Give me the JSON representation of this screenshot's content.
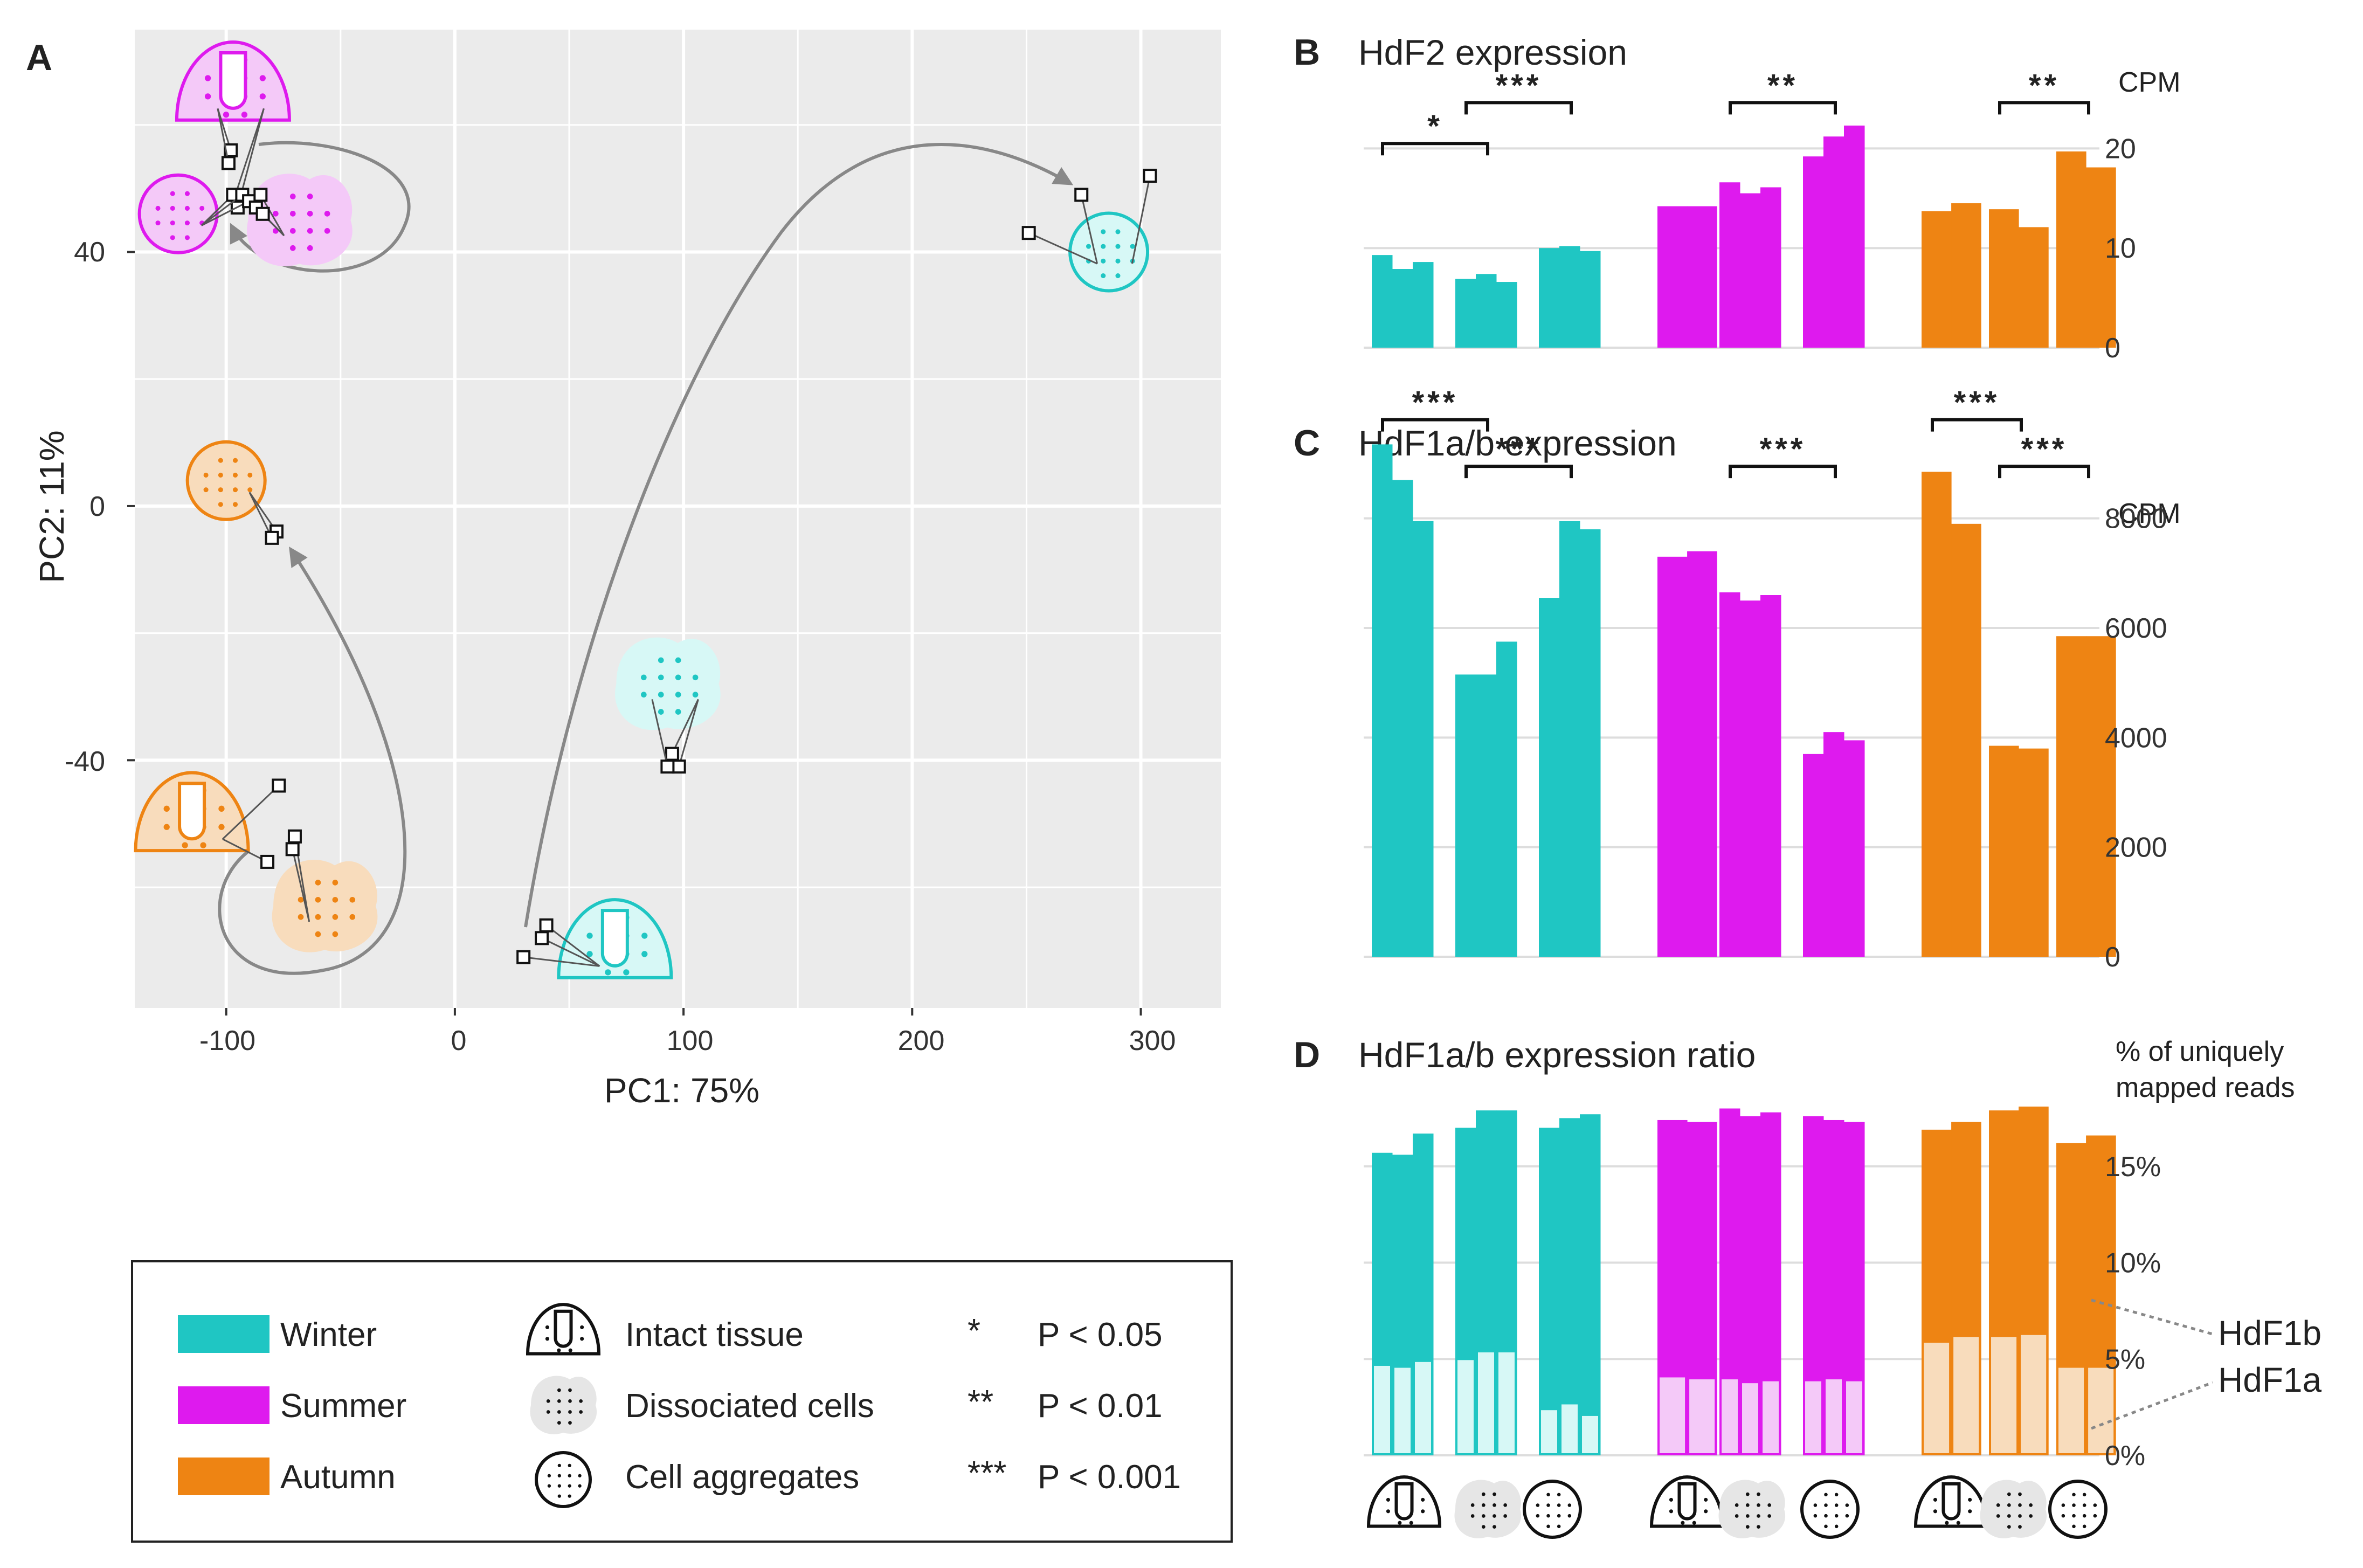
{
  "colors": {
    "winter": "#1fc6c3",
    "summer": "#de1aee",
    "autumn": "#ee8413",
    "winter_light": "#d7f8f6",
    "summer_light": "#f4c9f8",
    "autumn_light": "#f8dcbc",
    "grid_bg": "#ebebeb",
    "arrow": "#888888"
  },
  "panel_a": {
    "letter": "A",
    "xlabel": "PC1: 75%",
    "ylabel": "PC2: 11%",
    "xticks": [
      "-100",
      "0",
      "100",
      "200",
      "300"
    ],
    "yticks": [
      "40",
      "0",
      "-40"
    ],
    "xlim": [
      -140,
      335
    ],
    "ylim": [
      -79,
      75
    ]
  },
  "chart_data": [
    {
      "type": "scatter",
      "panel": "A",
      "title": "",
      "xlabel": "PC1: 75%",
      "ylabel": "PC2: 11%",
      "xlim": [
        -140,
        335
      ],
      "ylim": [
        -79,
        75
      ],
      "groups": [
        {
          "season": "Summer",
          "state": "Intact tissue",
          "glyph": "tissue",
          "glyph_center": [
            -97,
            65
          ],
          "points": [
            [
              -98,
              56
            ],
            [
              -99,
              54
            ],
            [
              -96,
              49
            ],
            [
              -95,
              47
            ]
          ]
        },
        {
          "season": "Summer",
          "state": "Cell aggregates",
          "glyph": "aggregate",
          "glyph_center": [
            -121,
            46
          ],
          "points": [
            [
              -97,
              49
            ],
            [
              -93,
              49
            ],
            [
              -90,
              48
            ]
          ]
        },
        {
          "season": "Summer",
          "state": "Dissociated cells",
          "glyph": "dissociated",
          "glyph_center": [
            -68,
            45
          ],
          "points": [
            [
              -85,
              49
            ],
            [
              -87,
              47
            ],
            [
              -84,
              46
            ]
          ]
        },
        {
          "season": "Winter",
          "state": "Cell aggregates",
          "glyph": "aggregate",
          "glyph_center": [
            286,
            40
          ],
          "points": [
            [
              251,
              43
            ],
            [
              274,
              49
            ],
            [
              304,
              52
            ]
          ]
        },
        {
          "season": "Autumn",
          "state": "Cell aggregates",
          "glyph": "aggregate",
          "glyph_center": [
            -100,
            4
          ],
          "points": [
            [
              -78,
              -4
            ],
            [
              -80,
              -5
            ]
          ]
        },
        {
          "season": "Winter",
          "state": "Dissociated cells",
          "glyph": "dissociated",
          "glyph_center": [
            93,
            -28
          ],
          "points": [
            [
              95,
              -39
            ],
            [
              98,
              -41
            ],
            [
              93,
              -41
            ]
          ]
        },
        {
          "season": "Autumn",
          "state": "Intact tissue",
          "glyph": "tissue",
          "glyph_center": [
            -115,
            -50
          ],
          "points": [
            [
              -77,
              -44
            ],
            [
              -82,
              -56
            ]
          ]
        },
        {
          "season": "Autumn",
          "state": "Dissociated cells",
          "glyph": "dissociated",
          "glyph_center": [
            -57,
            -63
          ],
          "points": [
            [
              -70,
              -52
            ],
            [
              -71,
              -54
            ]
          ]
        },
        {
          "season": "Winter",
          "state": "Intact tissue",
          "glyph": "tissue",
          "glyph_center": [
            70,
            -70
          ],
          "points": [
            [
              30,
              -71
            ],
            [
              38,
              -68
            ],
            [
              40,
              -66
            ]
          ]
        }
      ],
      "arrows": [
        {
          "season": "Summer",
          "from": "Intact tissue",
          "via": "Dissociated cells",
          "to": "Cell aggregates"
        },
        {
          "season": "Autumn",
          "from": "Intact tissue",
          "via": "Dissociated cells",
          "to": "Cell aggregates"
        },
        {
          "season": "Winter",
          "from": "Intact tissue",
          "via": "Dissociated cells",
          "to": "Cell aggregates"
        }
      ]
    },
    {
      "type": "bar",
      "panel": "B",
      "title": "HdF2 expression",
      "ylabel": "CPM",
      "ylim": [
        0,
        23
      ],
      "yticks": [
        "0",
        "10",
        "20"
      ],
      "groups": [
        {
          "season": "Winter",
          "samples": "Intact tissue",
          "values": [
            9.3,
            7.9,
            8.6
          ]
        },
        {
          "season": "Winter",
          "samples": "Dissociated cells",
          "values": [
            6.9,
            7.4,
            6.6
          ]
        },
        {
          "season": "Winter",
          "samples": "Cell aggregates",
          "values": [
            10.0,
            10.2,
            9.7
          ]
        },
        {
          "season": "Summer",
          "samples": "Intact tissue",
          "values": [
            14.2,
            14.2
          ]
        },
        {
          "season": "Summer",
          "samples": "Dissociated cells",
          "values": [
            16.6,
            15.5,
            16.1
          ]
        },
        {
          "season": "Summer",
          "samples": "Cell aggregates",
          "values": [
            19.2,
            21.2,
            22.3
          ]
        },
        {
          "season": "Autumn",
          "samples": "Intact tissue",
          "values": [
            13.7,
            14.5
          ]
        },
        {
          "season": "Autumn",
          "samples": "Dissociated cells",
          "values": [
            13.9,
            12.1
          ]
        },
        {
          "season": "Autumn",
          "samples": "Cell aggregates",
          "values": [
            19.7,
            18.1
          ]
        }
      ],
      "significance": [
        {
          "label": "*",
          "between": [
            0,
            1
          ],
          "level": 20.5
        },
        {
          "label": "***",
          "between": [
            1,
            2
          ],
          "level": 24.6
        },
        {
          "label": "**",
          "between": [
            4,
            5
          ],
          "level": 24.6
        },
        {
          "label": "**",
          "between": [
            7,
            8
          ],
          "level": 24.6
        }
      ]
    },
    {
      "type": "bar",
      "panel": "C",
      "title": "HdF1a/b expression",
      "ylabel": "CPM",
      "ylim": [
        0,
        9000
      ],
      "yticks": [
        "0",
        "2000",
        "4000",
        "6000",
        "8000"
      ],
      "groups": [
        {
          "season": "Winter",
          "samples": "Intact tissue",
          "values": [
            9350,
            8700,
            7950
          ]
        },
        {
          "season": "Winter",
          "samples": "Dissociated cells",
          "values": [
            5150,
            5150,
            5750
          ]
        },
        {
          "season": "Winter",
          "samples": "Cell aggregates",
          "values": [
            6550,
            7950,
            7800
          ]
        },
        {
          "season": "Summer",
          "samples": "Intact tissue",
          "values": [
            7300,
            7400
          ]
        },
        {
          "season": "Summer",
          "samples": "Dissociated cells",
          "values": [
            6650,
            6500,
            6600
          ]
        },
        {
          "season": "Summer",
          "samples": "Cell aggregates",
          "values": [
            3700,
            4100,
            3950
          ]
        },
        {
          "season": "Autumn",
          "samples": "Intact tissue",
          "values": [
            8850,
            7900
          ]
        },
        {
          "season": "Autumn",
          "samples": "Dissociated cells",
          "values": [
            3850,
            3800
          ]
        },
        {
          "season": "Autumn",
          "samples": "Cell aggregates",
          "values": [
            5850,
            5850
          ]
        }
      ],
      "significance": [
        {
          "label": "***",
          "between": [
            0,
            1
          ],
          "level": 9800
        },
        {
          "label": "***",
          "between": [
            1,
            2
          ],
          "level": 8950
        },
        {
          "label": "***",
          "between": [
            4,
            5
          ],
          "level": 8950
        },
        {
          "label": "***",
          "between": [
            6,
            7
          ],
          "level": 9800
        },
        {
          "label": "***",
          "between": [
            7,
            8
          ],
          "level": 8950
        }
      ]
    },
    {
      "type": "bar",
      "panel": "D",
      "stacked": true,
      "title": "HdF1a/b expression ratio",
      "ylabel": "% of uniquely mapped reads",
      "ylim": [
        0,
        20
      ],
      "yticks": [
        "0%",
        "5%",
        "10%",
        "15%"
      ],
      "series": [
        {
          "name": "HdF1a",
          "fill": "light"
        },
        {
          "name": "HdF1b",
          "fill": "solid"
        }
      ],
      "groups": [
        {
          "season": "Winter",
          "samples": "Intact tissue",
          "totals": [
            15.7,
            15.6,
            16.7
          ],
          "hdf1a": [
            4.7,
            4.6,
            4.9
          ]
        },
        {
          "season": "Winter",
          "samples": "Dissociated cells",
          "totals": [
            17.0,
            17.9,
            17.9
          ],
          "hdf1a": [
            5.0,
            5.4,
            5.4
          ]
        },
        {
          "season": "Winter",
          "samples": "Cell aggregates",
          "totals": [
            17.0,
            17.5,
            17.7
          ],
          "hdf1a": [
            2.4,
            2.7,
            2.1
          ]
        },
        {
          "season": "Summer",
          "samples": "Intact tissue",
          "totals": [
            17.4,
            17.3
          ],
          "hdf1a": [
            4.1,
            4.0
          ]
        },
        {
          "season": "Summer",
          "samples": "Dissociated cells",
          "totals": [
            18.0,
            17.6,
            17.8
          ],
          "hdf1a": [
            4.0,
            3.8,
            3.9
          ]
        },
        {
          "season": "Summer",
          "samples": "Cell aggregates",
          "totals": [
            17.6,
            17.4,
            17.3
          ],
          "hdf1a": [
            3.9,
            4.0,
            3.9
          ]
        },
        {
          "season": "Autumn",
          "samples": "Intact tissue",
          "totals": [
            16.9,
            17.3
          ],
          "hdf1a": [
            5.9,
            6.2
          ]
        },
        {
          "season": "Autumn",
          "samples": "Dissociated cells",
          "totals": [
            17.9,
            18.1
          ],
          "hdf1a": [
            6.2,
            6.3
          ]
        },
        {
          "season": "Autumn",
          "samples": "Cell aggregates",
          "totals": [
            16.2,
            16.6
          ],
          "hdf1a": [
            4.6,
            4.6
          ]
        }
      ],
      "annotations": [
        "HdF1b",
        "HdF1a"
      ]
    }
  ],
  "panel_b": {
    "letter": "B",
    "title": "HdF2 expression",
    "unit": "CPM",
    "yticks": [
      "0",
      "10",
      "20"
    ]
  },
  "panel_c": {
    "letter": "C",
    "title": "HdF1a/b expression",
    "unit": "CPM",
    "yticks": [
      "0",
      "2000",
      "4000",
      "6000",
      "8000"
    ]
  },
  "panel_d": {
    "letter": "D",
    "title": "HdF1a/b expression ratio",
    "unit_line1": "% of uniquely",
    "unit_line2": "mapped reads",
    "yticks": [
      "0%",
      "5%",
      "10%",
      "15%"
    ],
    "label_b": "HdF1b",
    "label_a": "HdF1a"
  },
  "legend": {
    "seasons": [
      {
        "label": "Winter",
        "color_key": "winter"
      },
      {
        "label": "Summer",
        "color_key": "summer"
      },
      {
        "label": "Autumn",
        "color_key": "autumn"
      }
    ],
    "states": [
      {
        "label": "Intact tissue",
        "icon": "intact-tissue-icon"
      },
      {
        "label": "Dissociated cells",
        "icon": "dissociated-cells-icon"
      },
      {
        "label": "Cell aggregates",
        "icon": "cell-aggregates-icon"
      }
    ],
    "significance": [
      {
        "stars": "*",
        "label": "P < 0.05"
      },
      {
        "stars": "**",
        "label": "P < 0.01"
      },
      {
        "stars": "***",
        "label": "P < 0.001"
      }
    ]
  }
}
